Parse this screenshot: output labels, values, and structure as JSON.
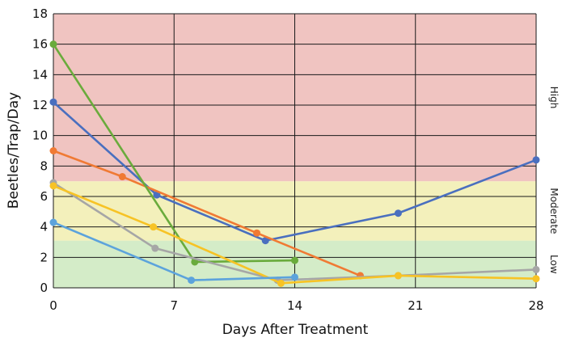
{
  "chart_data": {
    "type": "line",
    "xlabel": "Days After Treatment",
    "ylabel": "Beetles/Trap/Day",
    "xlim": [
      0,
      28
    ],
    "ylim": [
      0,
      18
    ],
    "x_ticks": [
      "0",
      "7",
      "14",
      "21",
      "28"
    ],
    "y_ticks": [
      "0",
      "2",
      "4",
      "6",
      "8",
      "10",
      "12",
      "14",
      "16",
      "18"
    ],
    "grid": true,
    "zones": [
      {
        "label": "Low",
        "from": 0,
        "to": 3.1,
        "color": "#d4ecc8"
      },
      {
        "label": "Moderate",
        "from": 3.1,
        "to": 7,
        "color": "#f3f0bb"
      },
      {
        "label": "High",
        "from": 7,
        "to": 18,
        "color": "#f0c4c1"
      }
    ],
    "series": [
      {
        "color": "#4a6fbf",
        "x": [
          0,
          6,
          12.3,
          20,
          28
        ],
        "y": [
          12.2,
          6.1,
          3.1,
          4.9,
          8.4
        ]
      },
      {
        "color": "#f07a34",
        "x": [
          0,
          4,
          11.8,
          17.8
        ],
        "y": [
          9,
          7.3,
          3.6,
          0.8
        ]
      },
      {
        "color": "#6aab3c",
        "x": [
          0,
          8.2,
          14
        ],
        "y": [
          16,
          1.7,
          1.8
        ]
      },
      {
        "color": "#a6a6a6",
        "x": [
          0,
          5.9,
          13,
          20,
          28
        ],
        "y": [
          6.9,
          2.6,
          0.5,
          0.8,
          1.2
        ]
      },
      {
        "color": "#f7c325",
        "x": [
          0,
          5.8,
          13.2,
          20,
          28
        ],
        "y": [
          6.7,
          4,
          0.3,
          0.8,
          0.6
        ]
      },
      {
        "color": "#5ca3dc",
        "x": [
          0,
          8,
          14
        ],
        "y": [
          4.3,
          0.5,
          0.7
        ]
      }
    ]
  }
}
